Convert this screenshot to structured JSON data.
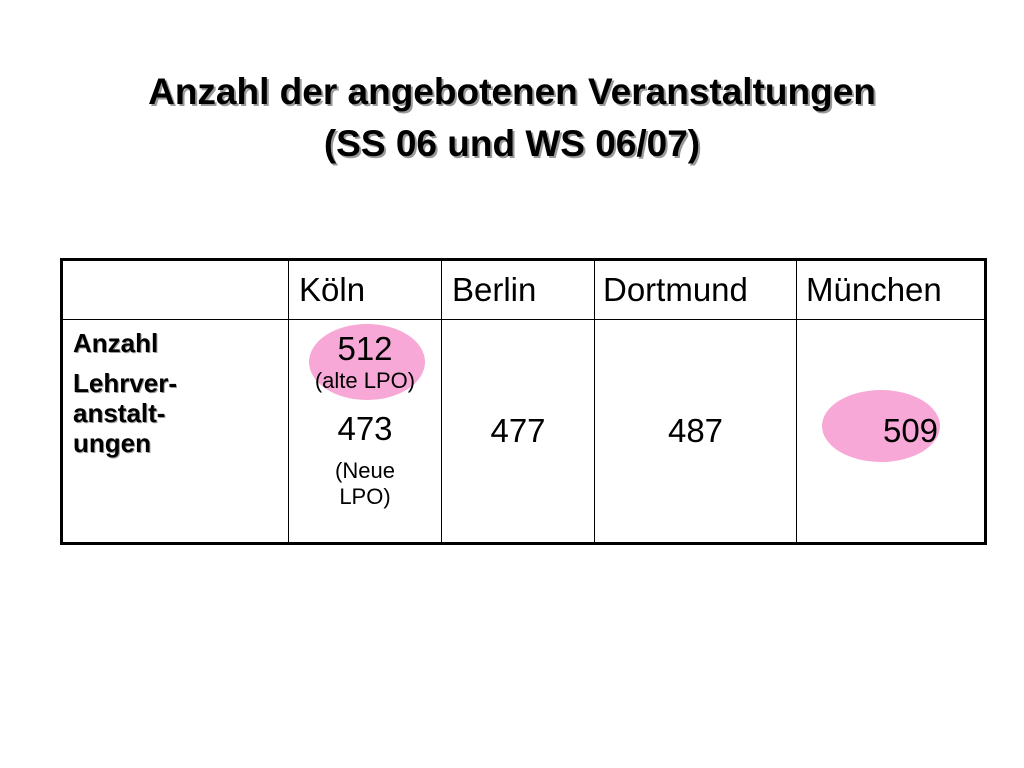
{
  "title": {
    "line1": "Anzahl der angebotenen Veranstaltungen",
    "line2": "(SS 06 und WS 06/07)"
  },
  "table": {
    "columns": [
      "",
      "Köln",
      "Berlin",
      "Dortmund",
      "München"
    ],
    "row": {
      "label_line1": "Anzahl",
      "label_line2": "Lehrver-",
      "label_line3": "anstalt-",
      "label_line4": "ungen",
      "koeln": {
        "value_old": "512",
        "note_old": "(alte LPO)",
        "value_new": "473",
        "note_new_line1": "(Neue",
        "note_new_line2": "LPO)"
      },
      "berlin": "477",
      "dortmund": "487",
      "muenchen": "509"
    },
    "highlight_color": "#f7a8d6"
  }
}
